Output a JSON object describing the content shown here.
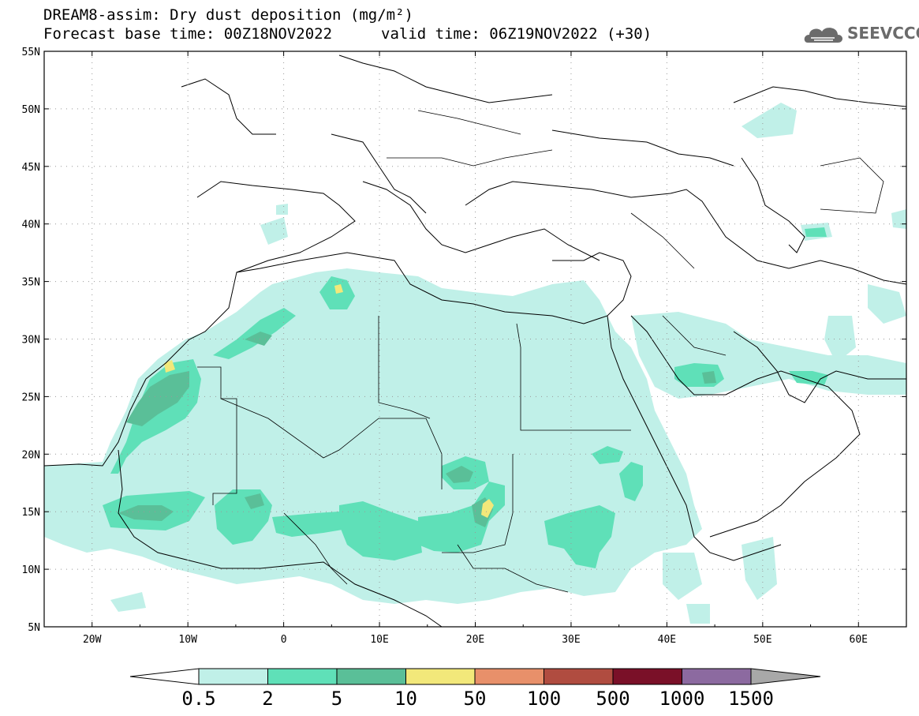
{
  "header": {
    "title_line1": "DREAM8-assim: Dry dust deposition (mg/m²)",
    "title_line2_left": "Forecast base time: 00Z18NOV2022",
    "title_line2_right": "valid time: 06Z19NOV2022 (+30)",
    "logo_text": "SEEVCCC"
  },
  "map": {
    "lon_range": [
      -25,
      65
    ],
    "lat_range": [
      5,
      55
    ],
    "lat_labels": [
      "55N",
      "50N",
      "45N",
      "40N",
      "35N",
      "30N",
      "25N",
      "20N",
      "15N",
      "10N",
      "5N"
    ],
    "lon_labels": [
      "20W",
      "10W",
      "0",
      "10E",
      "20E",
      "30E",
      "40E",
      "50E",
      "60E"
    ],
    "grid": true
  },
  "colorbar": {
    "labels": [
      "0.5",
      "2",
      "5",
      "10",
      "50",
      "100",
      "500",
      "1000",
      "1500"
    ],
    "colors": [
      "#ffffff",
      "#c0f0e8",
      "#5fe0b8",
      "#5abf98",
      "#f2e87a",
      "#e8906a",
      "#b04c40",
      "#7a1028",
      "#8c6aa0",
      "#a8a8a8"
    ]
  }
}
